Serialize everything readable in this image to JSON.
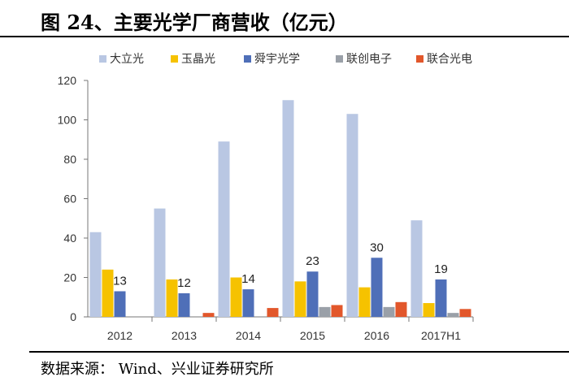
{
  "title": "图 24、主要光学厂商营收（亿元）",
  "source": "数据来源： Wind、兴业证券研究所",
  "chart_data": {
    "type": "bar",
    "title": "图 24、主要光学厂商营收（亿元）",
    "xlabel": "",
    "ylabel": "",
    "ylim": [
      0,
      120
    ],
    "yticks": [
      0,
      20,
      40,
      60,
      80,
      100,
      120
    ],
    "legend_position": "top",
    "grid": false,
    "categories": [
      "2012",
      "2013",
      "2014",
      "2015",
      "2016",
      "2017H1"
    ],
    "series": [
      {
        "name": "大立光",
        "color": "#b9c7e3",
        "values": [
          43,
          55,
          89,
          110,
          103,
          49
        ]
      },
      {
        "name": "玉晶光",
        "color": "#f6c200",
        "values": [
          24,
          19,
          20,
          18,
          15,
          7
        ]
      },
      {
        "name": "舜宇光学",
        "color": "#4f6fb8",
        "values": [
          13,
          12,
          14,
          23,
          30,
          19
        ]
      },
      {
        "name": "联创电子",
        "color": "#9aa0a8",
        "values": [
          0,
          0,
          0,
          5,
          5,
          2
        ]
      },
      {
        "name": "联合光电",
        "color": "#e2572b",
        "values": [
          0,
          2,
          4.5,
          6,
          7.5,
          4
        ]
      }
    ],
    "annotations": [
      {
        "category": "2012",
        "series": "舜宇光学",
        "label": "13"
      },
      {
        "category": "2013",
        "series": "舜宇光学",
        "label": "12"
      },
      {
        "category": "2014",
        "series": "舜宇光学",
        "label": "14"
      },
      {
        "category": "2015",
        "series": "舜宇光学",
        "label": "23"
      },
      {
        "category": "2016",
        "series": "舜宇光学",
        "label": "30"
      },
      {
        "category": "2017H1",
        "series": "舜宇光学",
        "label": "19"
      }
    ]
  }
}
